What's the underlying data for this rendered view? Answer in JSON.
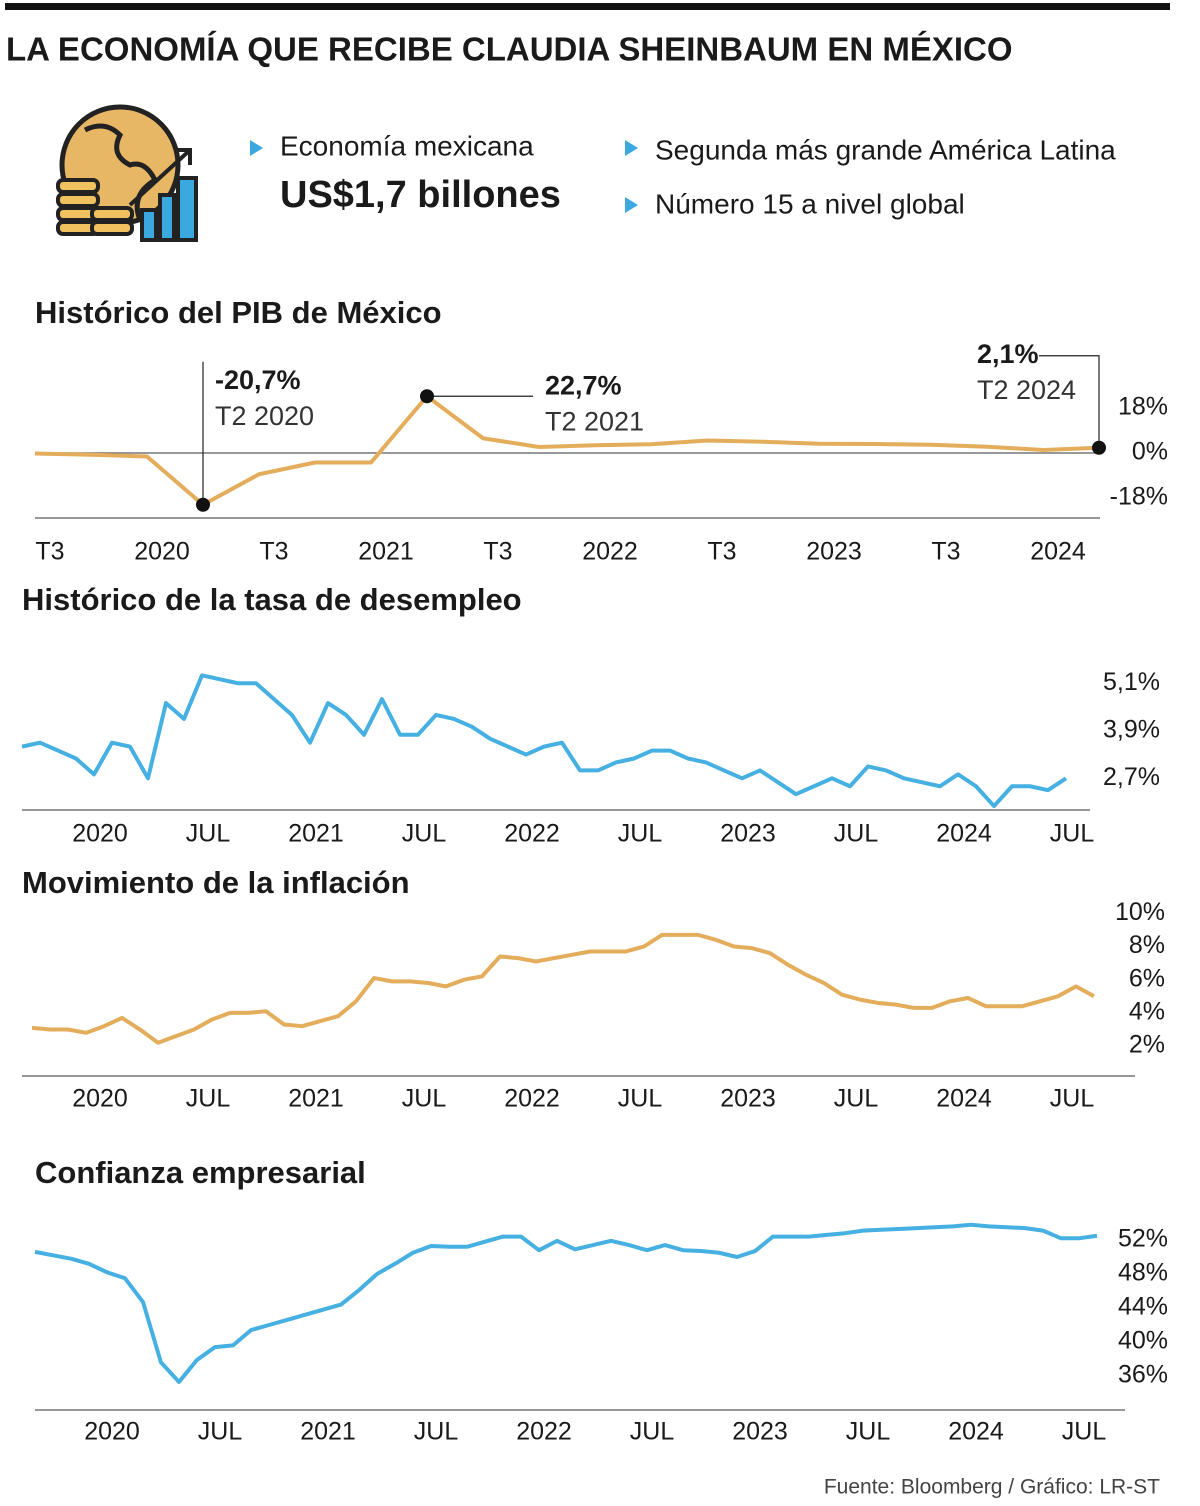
{
  "title": "LA ECONOMÍA QUE RECIBE CLAUDIA SHEINBAUM EN MÉXICO",
  "highlights": {
    "label": "Economía mexicana",
    "value": "US$1,7 billones",
    "facts": [
      "Segunda más grande América Latina",
      "Número 15 a nivel global"
    ]
  },
  "chart_data": [
    {
      "type": "line",
      "title": "Histórico del PIB de México",
      "color": "#e3ad5b",
      "categories": [
        "T3",
        null,
        "2020",
        null,
        "T3",
        null,
        "2021",
        null,
        "T3",
        null,
        "2022",
        null,
        "T3",
        null,
        "2023",
        null,
        "T3",
        null,
        "2024",
        null
      ],
      "values": [
        -0.2,
        -0.7,
        -1.4,
        -20.7,
        -8.5,
        -3.8,
        -3.8,
        22.7,
        5.9,
        2.4,
        3.1,
        3.5,
        5.0,
        4.5,
        3.7,
        3.6,
        3.3,
        2.5,
        1.2,
        2.1
      ],
      "value_labels": [
        null,
        null,
        null,
        "-20,7%",
        null,
        null,
        null,
        "22,7%",
        null,
        null,
        null,
        null,
        null,
        null,
        null,
        null,
        null,
        null,
        null,
        "2,1%"
      ],
      "point_labels": [
        null,
        null,
        null,
        "T2 2020",
        null,
        null,
        null,
        "T2 2021",
        null,
        null,
        null,
        null,
        null,
        null,
        null,
        null,
        null,
        null,
        null,
        "T2 2024"
      ],
      "ylim": [
        -26,
        26
      ],
      "yticks": [
        {
          "value": 18,
          "label": "18%"
        },
        {
          "value": 0,
          "label": "0%"
        },
        {
          "value": -18,
          "label": "-18%"
        }
      ]
    },
    {
      "type": "line",
      "title": "Histórico de la tasa de desempleo",
      "color": "#45b0e1",
      "categories": [
        null,
        null,
        null,
        null,
        "2020",
        null,
        null,
        null,
        null,
        null,
        "JUL",
        null,
        null,
        null,
        null,
        null,
        "2021",
        null,
        null,
        null,
        null,
        null,
        "JUL",
        null,
        null,
        null,
        null,
        null,
        "2022",
        null,
        null,
        null,
        null,
        null,
        "JUL",
        null,
        null,
        null,
        null,
        null,
        "2023",
        null,
        null,
        null,
        null,
        null,
        "JUL",
        null,
        null,
        null,
        null,
        null,
        "2024",
        null,
        null,
        null,
        null,
        null,
        "JUL"
      ],
      "values": [
        3.5,
        3.6,
        3.4,
        3.2,
        2.8,
        3.6,
        3.5,
        2.7,
        4.6,
        4.2,
        5.3,
        5.2,
        5.1,
        5.1,
        4.7,
        4.3,
        3.6,
        4.6,
        4.3,
        3.8,
        4.7,
        3.8,
        3.8,
        4.3,
        4.2,
        4.0,
        3.7,
        3.5,
        3.3,
        3.5,
        3.6,
        2.9,
        2.9,
        3.1,
        3.2,
        3.4,
        3.4,
        3.2,
        3.1,
        2.9,
        2.7,
        2.9,
        2.6,
        2.3,
        2.5,
        2.7,
        2.5,
        3.0,
        2.9,
        2.7,
        2.6,
        2.5,
        2.8,
        2.5,
        2.0,
        2.5,
        2.5,
        2.4,
        2.7
      ],
      "ylim": [
        1.9,
        5.7
      ],
      "yticks": [
        {
          "value": 5.1,
          "label": "5,1%"
        },
        {
          "value": 3.9,
          "label": "3,9%"
        },
        {
          "value": 2.7,
          "label": "2,7%"
        }
      ]
    },
    {
      "type": "line",
      "title": "Movimiento de la inflación",
      "color": "#e3ad5b",
      "categories": [
        null,
        null,
        null,
        null,
        "2020",
        null,
        null,
        null,
        null,
        null,
        "JUL",
        null,
        null,
        null,
        null,
        null,
        "2021",
        null,
        null,
        null,
        null,
        null,
        "JUL",
        null,
        null,
        null,
        null,
        null,
        "2022",
        null,
        null,
        null,
        null,
        null,
        "JUL",
        null,
        null,
        null,
        null,
        null,
        "2023",
        null,
        null,
        null,
        null,
        null,
        "JUL",
        null,
        null,
        null,
        null,
        null,
        "2024",
        null,
        null,
        null,
        null,
        null,
        "JUL",
        null
      ],
      "values": [
        3.1,
        3.0,
        3.0,
        2.8,
        3.2,
        3.7,
        3.0,
        2.2,
        2.6,
        3.0,
        3.6,
        4.0,
        4.0,
        4.1,
        3.3,
        3.2,
        3.5,
        3.8,
        4.7,
        6.1,
        5.9,
        5.9,
        5.8,
        5.6,
        6.0,
        6.2,
        7.4,
        7.3,
        7.1,
        7.3,
        7.5,
        7.7,
        7.7,
        7.7,
        8.0,
        8.7,
        8.7,
        8.7,
        8.4,
        8.0,
        7.9,
        7.6,
        6.9,
        6.3,
        5.8,
        5.1,
        4.8,
        4.6,
        4.5,
        4.3,
        4.3,
        4.7,
        4.9,
        4.4,
        4.4,
        4.4,
        4.7,
        5.0,
        5.6,
        5.0
      ],
      "ylim": [
        0.2,
        10.5
      ],
      "yticks": [
        {
          "value": 10,
          "label": "10%"
        },
        {
          "value": 8,
          "label": "8%"
        },
        {
          "value": 6,
          "label": "6%"
        },
        {
          "value": 4,
          "label": "4%"
        },
        {
          "value": 2,
          "label": "2%"
        }
      ]
    },
    {
      "type": "line",
      "title": "Confianza empresarial",
      "color": "#45b0e1",
      "categories": [
        null,
        null,
        null,
        null,
        "2020",
        null,
        null,
        null,
        null,
        null,
        "JUL",
        null,
        null,
        null,
        null,
        null,
        "2021",
        null,
        null,
        null,
        null,
        null,
        "JUL",
        null,
        null,
        null,
        null,
        null,
        "2022",
        null,
        null,
        null,
        null,
        null,
        "JUL",
        null,
        null,
        null,
        null,
        null,
        "2023",
        null,
        null,
        null,
        null,
        null,
        "JUL",
        null,
        null,
        null,
        null,
        null,
        "2024",
        null,
        null,
        null,
        null,
        null,
        "JUL",
        null
      ],
      "values": [
        50.6,
        50.2,
        49.8,
        49.2,
        48.2,
        47.5,
        44.7,
        37.6,
        35.3,
        37.9,
        39.4,
        39.6,
        41.4,
        42.0,
        42.6,
        43.2,
        43.8,
        44.4,
        46.1,
        48.0,
        49.2,
        50.5,
        51.3,
        51.2,
        51.2,
        51.8,
        52.4,
        52.4,
        50.8,
        51.9,
        50.9,
        51.4,
        51.9,
        51.4,
        50.8,
        51.4,
        50.8,
        50.7,
        50.5,
        50.0,
        50.7,
        52.4,
        52.4,
        52.4,
        52.6,
        52.8,
        53.1,
        53.2,
        53.3,
        53.4,
        53.5,
        53.6,
        53.8,
        53.6,
        53.5,
        53.4,
        53.1,
        52.2,
        52.2,
        52.5
      ],
      "ylim": [
        32,
        55
      ],
      "yticks": [
        {
          "value": 52,
          "label": "52%"
        },
        {
          "value": 48,
          "label": "48%"
        },
        {
          "value": 44,
          "label": "44%"
        },
        {
          "value": 40,
          "label": "40%"
        },
        {
          "value": 36,
          "label": "36%"
        }
      ]
    }
  ],
  "source": "Fuente:  Bloomberg / Gráfico: LR-ST"
}
